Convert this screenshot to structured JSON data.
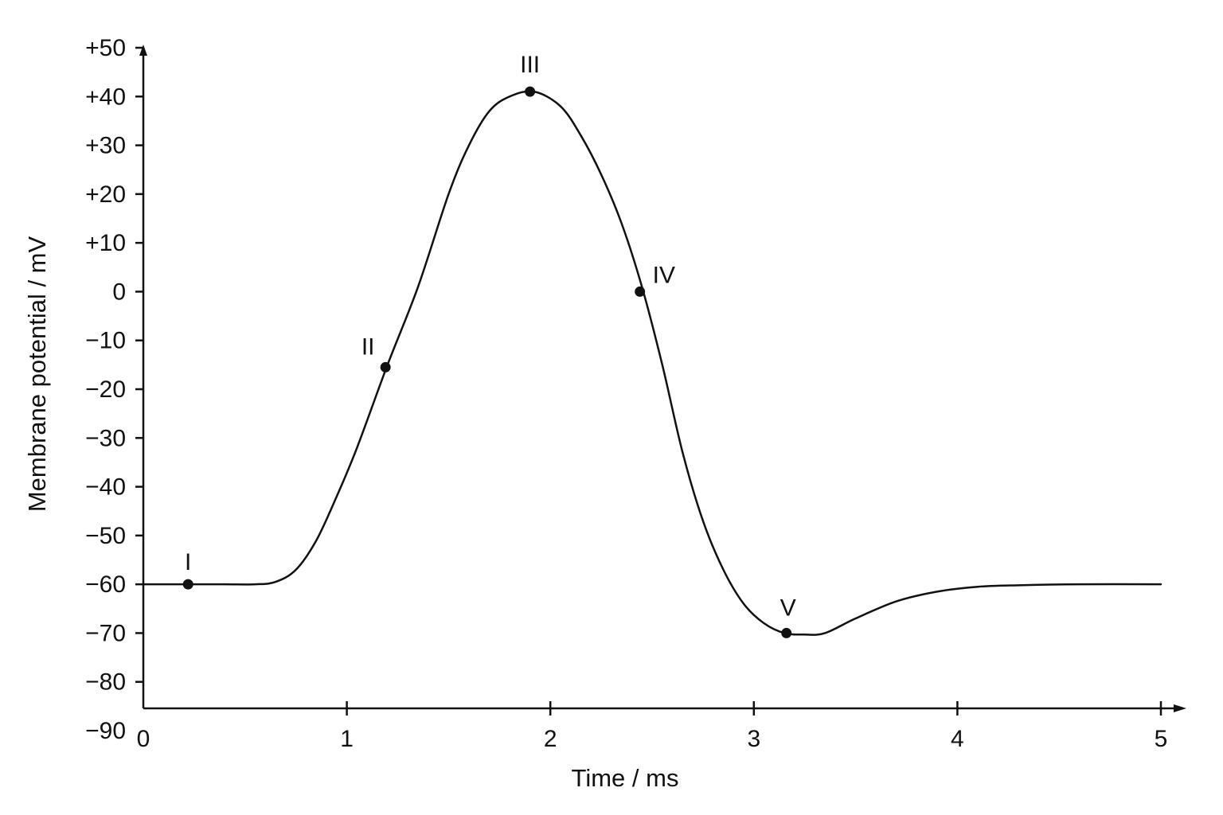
{
  "chart_data": {
    "type": "line",
    "title": "",
    "xlabel": "Time / ms",
    "ylabel": "Membrane potential  / mV",
    "xlim": [
      0,
      5
    ],
    "ylim": [
      -90,
      50
    ],
    "x_ticks": [
      0,
      1,
      2,
      3,
      4,
      5
    ],
    "x_tick_labels": [
      "0",
      "1",
      "2",
      "3",
      "4",
      "5"
    ],
    "y_ticks": [
      50,
      40,
      30,
      20,
      10,
      0,
      -10,
      -20,
      -30,
      -40,
      -50,
      -60,
      -70,
      -80,
      -90
    ],
    "y_tick_labels": [
      "+50",
      "+40",
      "+30",
      "+20",
      "+10",
      "0",
      "−10",
      "−20",
      "−30",
      "−40",
      "−50",
      "−60",
      "−70",
      "−80",
      "−90"
    ],
    "grid": false,
    "line_color": "#111111",
    "series": [
      {
        "x": [
          0,
          0.2,
          0.4,
          0.55,
          0.65,
          0.75,
          0.85,
          0.95,
          1.05,
          1.2,
          1.35,
          1.5,
          1.6,
          1.7,
          1.8,
          1.92,
          2.05,
          2.15,
          2.25,
          2.35,
          2.45,
          2.55,
          2.65,
          2.75,
          2.85,
          2.95,
          3.05,
          3.15,
          3.25,
          3.35,
          3.5,
          3.7,
          3.9,
          4.1,
          4.3,
          4.6,
          5.0
        ],
        "y": [
          -60,
          -60,
          -60,
          -60,
          -59.5,
          -57,
          -51,
          -42,
          -32,
          -15,
          1,
          20,
          30,
          37,
          40,
          41,
          38,
          32,
          24,
          14,
          1,
          -15,
          -33,
          -47,
          -57,
          -64,
          -68,
          -70,
          -70.3,
          -70,
          -67,
          -63.5,
          -61.5,
          -60.5,
          -60.2,
          -60,
          -60
        ]
      }
    ],
    "points": [
      {
        "label": "I",
        "x": 0.22,
        "y": -60
      },
      {
        "label": "II",
        "x": 1.19,
        "y": -15.5
      },
      {
        "label": "III",
        "x": 1.9,
        "y": 41
      },
      {
        "label": "IV",
        "x": 2.44,
        "y": 0
      },
      {
        "label": "V",
        "x": 3.16,
        "y": -70
      }
    ]
  }
}
